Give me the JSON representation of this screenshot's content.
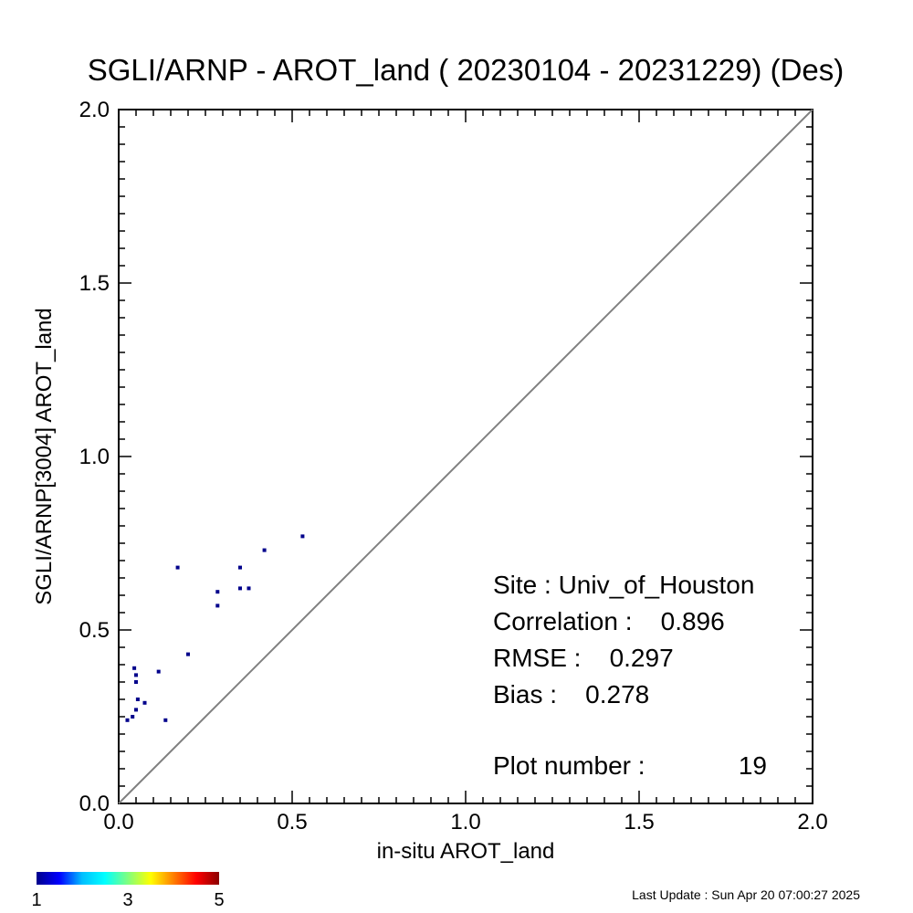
{
  "chart_data": {
    "type": "scatter",
    "title": "SGLI/ARNP - AROT_land ( 20230104 - 20231229) (Des)",
    "xlabel": "in-situ AROT_land",
    "ylabel": "SGLI/ARNP[3004]    AROT_land",
    "xlim": [
      0,
      2
    ],
    "ylim": [
      0,
      2
    ],
    "x_ticks": [
      "0.0",
      "0.5",
      "1.0",
      "1.5",
      "2.0"
    ],
    "y_ticks": [
      "0.0",
      "0.5",
      "1.0",
      "1.5",
      "2.0"
    ],
    "reference_line": "1:1",
    "point_color": "#00008b",
    "points": [
      {
        "x": 0.53,
        "y": 0.77
      },
      {
        "x": 0.42,
        "y": 0.73
      },
      {
        "x": 0.35,
        "y": 0.68
      },
      {
        "x": 0.17,
        "y": 0.68
      },
      {
        "x": 0.35,
        "y": 0.62
      },
      {
        "x": 0.375,
        "y": 0.62
      },
      {
        "x": 0.285,
        "y": 0.61
      },
      {
        "x": 0.285,
        "y": 0.57
      },
      {
        "x": 0.2,
        "y": 0.43
      },
      {
        "x": 0.115,
        "y": 0.38
      },
      {
        "x": 0.045,
        "y": 0.39
      },
      {
        "x": 0.05,
        "y": 0.37
      },
      {
        "x": 0.05,
        "y": 0.35
      },
      {
        "x": 0.055,
        "y": 0.3
      },
      {
        "x": 0.075,
        "y": 0.29
      },
      {
        "x": 0.05,
        "y": 0.27
      },
      {
        "x": 0.04,
        "y": 0.25
      },
      {
        "x": 0.025,
        "y": 0.24
      },
      {
        "x": 0.135,
        "y": 0.24
      }
    ],
    "stats": {
      "site": "Site : Univ_of_Houston",
      "correlation": "Correlation :    0.896",
      "rmse": "RMSE :    0.297",
      "bias": "Bias :    0.278",
      "plot_number": "Plot number :",
      "plot_number_value": "19"
    },
    "colorbar": {
      "colors": [
        "#00008b",
        "#0000ff",
        "#00bfff",
        "#00ffff",
        "#7fff7f",
        "#ffff00",
        "#ff7f00",
        "#ff0000",
        "#8b0000"
      ],
      "ticks": [
        "1",
        "3",
        "5"
      ]
    }
  },
  "footer": {
    "last_update": "Last Update : Sun Apr 20 07:00:27 2025"
  }
}
